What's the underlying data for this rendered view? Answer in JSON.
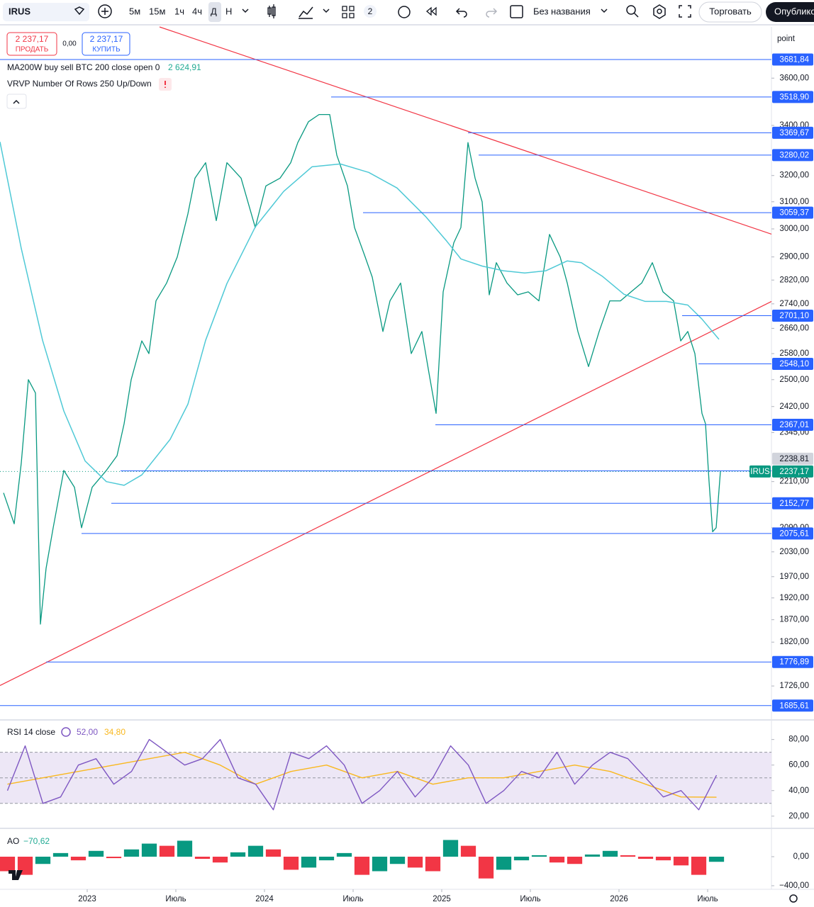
{
  "toolbar": {
    "symbol": "IRUS",
    "intervals": [
      "5м",
      "15м",
      "1ч",
      "4ч",
      "Д",
      "Н"
    ],
    "layouts_count": "2",
    "layout_name": "Без названия",
    "trade_button": "Торговать",
    "publish_button": "Опубликовать"
  },
  "trade": {
    "sell_price": "2 237,17",
    "sell": "ПРОДАТЬ",
    "spread": "0,00",
    "buy_price": "2 237,17",
    "buy": "КУПИТЬ"
  },
  "indicators": {
    "vrvp": "VRVP Number Of Rows 250 Up/Down"
  },
  "chart_data": [
    {
      "type": "line",
      "log_scale": true,
      "axis_unit": "point",
      "xlim": [
        2022.508,
        2026.86
      ],
      "ylim": [
        1658,
        3830
      ],
      "yticks": [
        {
          "value": 3600,
          "label": "3600,00"
        },
        {
          "value": 3400,
          "label": "3400,00"
        },
        {
          "value": 3200,
          "label": "3200,00"
        },
        {
          "value": 3100,
          "label": "3100,00"
        },
        {
          "value": 3000,
          "label": "3000,00"
        },
        {
          "value": 2900,
          "label": "2900,00"
        },
        {
          "value": 2820,
          "label": "2820,00"
        },
        {
          "value": 2740,
          "label": "2740,00"
        },
        {
          "value": 2660,
          "label": "2660,00"
        },
        {
          "value": 2580,
          "label": "2580,00"
        },
        {
          "value": 2500,
          "label": "2500,00"
        },
        {
          "value": 2420,
          "label": "2420,00"
        },
        {
          "value": 2345,
          "label": "2345,00"
        },
        {
          "value": 2210,
          "label": "2210,00"
        },
        {
          "value": 2090,
          "label": "2090,00"
        },
        {
          "value": 2030,
          "label": "2030,00"
        },
        {
          "value": 1970,
          "label": "1970,00"
        },
        {
          "value": 1920,
          "label": "1920,00"
        },
        {
          "value": 1870,
          "label": "1870,00"
        },
        {
          "value": 1820,
          "label": "1820,00"
        },
        {
          "value": 1726,
          "label": "1726,00"
        }
      ],
      "series": [
        {
          "name": "IRUS",
          "color": "#089981",
          "last_label": "2237,17",
          "last_color": "#089981",
          "x": [
            2022.528,
            2022.588,
            2022.628,
            2022.668,
            2022.708,
            2022.736,
            2022.768,
            2022.808,
            2022.868,
            2022.928,
            2022.968,
            2023.028,
            2023.108,
            2023.168,
            2023.208,
            2023.248,
            2023.308,
            2023.348,
            2023.388,
            2023.448,
            2023.508,
            2023.568,
            2023.608,
            2023.668,
            2023.728,
            2023.788,
            2023.868,
            2023.948,
            2024.008,
            2024.088,
            2024.148,
            2024.188,
            2024.248,
            2024.308,
            2024.368,
            2024.408,
            2024.468,
            2024.508,
            2024.568,
            2024.608,
            2024.668,
            2024.708,
            2024.768,
            2024.828,
            2024.888,
            2024.928,
            2024.968,
            2025.008,
            2025.068,
            2025.108,
            2025.148,
            2025.188,
            2025.228,
            2025.268,
            2025.308,
            2025.368,
            2025.428,
            2025.488,
            2025.548,
            2025.608,
            2025.668,
            2025.708,
            2025.768,
            2025.828,
            2025.888,
            2025.948,
            2026.008,
            2026.068,
            2026.128,
            2026.188,
            2026.248,
            2026.308,
            2026.348,
            2026.388,
            2026.428,
            2026.468,
            2026.488,
            2026.508,
            2026.528,
            2026.548,
            2026.572
          ],
          "values": [
            2180,
            2100,
            2260,
            2500,
            2460,
            1860,
            1990,
            2090,
            2240,
            2195,
            2090,
            2195,
            2240,
            2280,
            2370,
            2500,
            2620,
            2580,
            2750,
            2810,
            2900,
            3055,
            3190,
            3250,
            3030,
            3250,
            3190,
            3005,
            3160,
            3190,
            3250,
            3330,
            3415,
            3445,
            3445,
            3280,
            3160,
            3005,
            2900,
            2830,
            2650,
            2750,
            2810,
            2580,
            2650,
            2520,
            2400,
            2780,
            2950,
            3005,
            3330,
            3190,
            3100,
            2770,
            2880,
            2810,
            2770,
            2780,
            2750,
            2980,
            2900,
            2810,
            2650,
            2540,
            2650,
            2750,
            2750,
            2780,
            2810,
            2880,
            2780,
            2750,
            2620,
            2650,
            2580,
            2400,
            2370,
            2210,
            2080,
            2090,
            2237.17
          ]
        },
        {
          "name": "MA200W buy sell BTC 200 close open 0",
          "color": "#4fc9d6",
          "last_label": "2 624,91",
          "x": [
            2022.508,
            2022.628,
            2022.748,
            2022.868,
            2022.988,
            2023.108,
            2023.208,
            2023.308,
            2023.468,
            2023.568,
            2023.668,
            2023.788,
            2023.948,
            2024.108,
            2024.268,
            2024.428,
            2024.588,
            2024.748,
            2024.908,
            2025.028,
            2025.108,
            2025.228,
            2025.348,
            2025.468,
            2025.588,
            2025.708,
            2025.788,
            2025.908,
            2026.028,
            2026.148,
            2026.268,
            2026.388,
            2026.468,
            2026.564
          ],
          "values": [
            3333,
            2930,
            2622,
            2407,
            2266,
            2210,
            2200,
            2228,
            2326,
            2427,
            2622,
            2808,
            3007,
            3139,
            3234,
            3245,
            3212,
            3152,
            3046,
            2956,
            2893,
            2868,
            2852,
            2844,
            2852,
            2886,
            2880,
            2832,
            2772,
            2748,
            2748,
            2736,
            2690,
            2624.91
          ]
        }
      ],
      "levels": [
        {
          "value": 3681.84,
          "label": "3681,84",
          "start": 2022.508,
          "color": "#2962ff"
        },
        {
          "value": 3518.9,
          "label": "3518,90",
          "start": 2024.376,
          "color": "#2962ff"
        },
        {
          "value": 3369.67,
          "label": "3369,67",
          "start": 2025.148,
          "color": "#2962ff"
        },
        {
          "value": 3280.02,
          "label": "3280,02",
          "start": 2025.208,
          "color": "#2962ff"
        },
        {
          "value": 3059.37,
          "label": "3059,37",
          "start": 2024.556,
          "color": "#2962ff"
        },
        {
          "value": 2701.1,
          "label": "2701,10",
          "start": 2026.356,
          "color": "#2962ff"
        },
        {
          "value": 2548.1,
          "label": "2548,10",
          "start": 2026.448,
          "color": "#2962ff"
        },
        {
          "value": 2367.01,
          "label": "2367,01",
          "start": 2024.964,
          "color": "#2962ff"
        },
        {
          "value": 2238.81,
          "label": "2238,81",
          "start": 2023.188,
          "color": "#d1d4dc"
        },
        {
          "value": 2152.77,
          "label": "2152,77",
          "start": 2023.136,
          "color": "#2962ff"
        },
        {
          "value": 2075.61,
          "label": "2075,61",
          "start": 2022.968,
          "color": "#2962ff"
        },
        {
          "value": 1776.89,
          "label": "1776,89",
          "start": 2022.768,
          "color": "#2962ff"
        },
        {
          "value": 1685.61,
          "label": "1685,61",
          "start": 2022.508,
          "color": "#2962ff"
        }
      ],
      "trendlines": [
        {
          "points": [
            [
              2023.408,
              3830
            ],
            [
              2026.86,
              2981
            ]
          ],
          "color": "#f23645"
        },
        {
          "points": [
            [
              2022.508,
              1727
            ],
            [
              2026.86,
              2748
            ]
          ],
          "color": "#f23645"
        }
      ]
    },
    {
      "type": "line",
      "title": "RSI 14 close",
      "xlim": [
        2022.508,
        2026.86
      ],
      "ylim": [
        11,
        92
      ],
      "yticks": [
        {
          "value": 20,
          "label": "20,00"
        },
        {
          "value": 40,
          "label": "40,00"
        },
        {
          "value": 60,
          "label": "60,00"
        },
        {
          "value": 80,
          "label": "80,00"
        }
      ],
      "band": [
        30,
        70
      ],
      "band_color": "#ede7f6",
      "levels": [
        30,
        50,
        70
      ],
      "series": [
        {
          "color": "#7e57c2",
          "last_label": "52,00",
          "x": [
            2022.55,
            2022.65,
            2022.75,
            2022.85,
            2022.95,
            2023.05,
            2023.15,
            2023.25,
            2023.35,
            2023.45,
            2023.55,
            2023.65,
            2023.75,
            2023.85,
            2023.95,
            2024.05,
            2024.15,
            2024.25,
            2024.35,
            2024.45,
            2024.55,
            2024.65,
            2024.75,
            2024.85,
            2024.95,
            2025.05,
            2025.15,
            2025.25,
            2025.35,
            2025.45,
            2025.55,
            2025.65,
            2025.75,
            2025.85,
            2025.95,
            2026.05,
            2026.15,
            2026.25,
            2026.35,
            2026.45,
            2026.55
          ],
          "values": [
            40,
            75,
            30,
            35,
            60,
            65,
            45,
            55,
            80,
            70,
            60,
            65,
            80,
            50,
            45,
            25,
            70,
            65,
            75,
            60,
            30,
            40,
            55,
            35,
            50,
            75,
            60,
            30,
            40,
            55,
            50,
            70,
            45,
            60,
            70,
            65,
            50,
            35,
            40,
            25,
            52
          ]
        },
        {
          "color": "#f9b81f",
          "last_label": "34,80",
          "x": [
            2022.55,
            2022.75,
            2022.95,
            2023.15,
            2023.35,
            2023.55,
            2023.75,
            2023.95,
            2024.15,
            2024.35,
            2024.55,
            2024.75,
            2024.95,
            2025.15,
            2025.35,
            2025.55,
            2025.75,
            2025.95,
            2026.15,
            2026.35,
            2026.55
          ],
          "values": [
            45,
            50,
            55,
            60,
            65,
            70,
            60,
            45,
            55,
            60,
            50,
            55,
            45,
            50,
            50,
            55,
            60,
            55,
            45,
            35,
            34.8
          ]
        }
      ]
    },
    {
      "type": "histogram",
      "title": "AO",
      "xlim": [
        2022.508,
        2026.86
      ],
      "ylim": [
        -449,
        361
      ],
      "yticks": [
        {
          "value": 0,
          "label": "0,00"
        },
        {
          "value": -400,
          "label": "−400,00"
        }
      ],
      "xticks": [
        {
          "value": 2023,
          "label": "2023"
        },
        {
          "value": 2023.5,
          "label": "Июль"
        },
        {
          "value": 2024,
          "label": "2024"
        },
        {
          "value": 2024.5,
          "label": "Июль"
        },
        {
          "value": 2025,
          "label": "2025"
        },
        {
          "value": 2025.5,
          "label": "Июль"
        },
        {
          "value": 2026,
          "label": "2026"
        },
        {
          "value": 2026.5,
          "label": "Июль"
        }
      ],
      "up_color": "#089981",
      "down_color": "#f23645",
      "last_label": "−70,62",
      "x": [
        2022.55,
        2022.65,
        2022.75,
        2022.85,
        2022.95,
        2023.05,
        2023.15,
        2023.25,
        2023.35,
        2023.45,
        2023.55,
        2023.65,
        2023.75,
        2023.85,
        2023.95,
        2024.05,
        2024.15,
        2024.25,
        2024.35,
        2024.45,
        2024.55,
        2024.65,
        2024.75,
        2024.85,
        2024.95,
        2025.05,
        2025.15,
        2025.25,
        2025.35,
        2025.45,
        2025.55,
        2025.65,
        2025.75,
        2025.85,
        2025.95,
        2026.05,
        2026.15,
        2026.25,
        2026.35,
        2026.45,
        2026.55
      ],
      "values": [
        -200,
        -250,
        -100,
        50,
        -50,
        80,
        -20,
        100,
        180,
        150,
        220,
        -30,
        -80,
        60,
        150,
        100,
        -180,
        -150,
        -50,
        50,
        -250,
        -200,
        -100,
        -150,
        -200,
        230,
        150,
        -300,
        -180,
        -50,
        20,
        -80,
        -100,
        30,
        80,
        20,
        -30,
        -50,
        -120,
        -250,
        -70.62
      ]
    }
  ]
}
